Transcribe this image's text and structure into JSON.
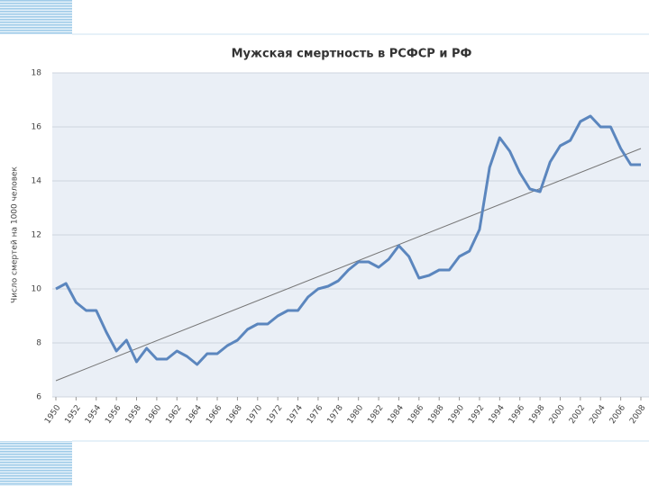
{
  "chart_data": {
    "type": "line",
    "title": "Мужская смертность в РСФСР и РФ",
    "y_label": "Число смертей на 1000 человек",
    "x": [
      1950,
      1951,
      1952,
      1953,
      1954,
      1955,
      1956,
      1957,
      1958,
      1959,
      1960,
      1961,
      1962,
      1963,
      1964,
      1965,
      1966,
      1967,
      1968,
      1969,
      1970,
      1971,
      1972,
      1973,
      1974,
      1975,
      1976,
      1977,
      1978,
      1979,
      1980,
      1981,
      1982,
      1983,
      1984,
      1985,
      1986,
      1987,
      1988,
      1989,
      1990,
      1991,
      1992,
      1993,
      1994,
      1995,
      1996,
      1997,
      1998,
      1999,
      2000,
      2001,
      2002,
      2003,
      2004,
      2005,
      2006,
      2007,
      2008
    ],
    "series": [
      {
        "color": "#5b86be",
        "values": [
          10.0,
          10.2,
          9.5,
          9.2,
          9.2,
          8.4,
          7.7,
          8.1,
          7.3,
          7.8,
          7.4,
          7.4,
          7.7,
          7.5,
          7.2,
          7.6,
          7.6,
          7.9,
          8.1,
          8.5,
          8.7,
          8.7,
          9.0,
          9.2,
          9.2,
          9.7,
          10.0,
          10.1,
          10.3,
          10.7,
          11.0,
          11.0,
          10.8,
          11.1,
          11.6,
          11.2,
          10.4,
          10.5,
          10.7,
          10.7,
          11.2,
          11.4,
          12.2,
          14.5,
          15.6,
          15.1,
          14.3,
          13.7,
          13.6,
          14.7,
          15.3,
          15.5,
          16.2,
          16.4,
          16.0,
          16.0,
          15.2,
          14.6,
          14.6
        ]
      }
    ],
    "trendline": {
      "x": [
        1950,
        2008
      ],
      "values": [
        6.6,
        15.2
      ],
      "color": "#777777"
    },
    "xlim": [
      1950,
      2008
    ],
    "xticks": [
      1950,
      1952,
      1954,
      1956,
      1958,
      1960,
      1962,
      1964,
      1966,
      1968,
      1970,
      1972,
      1974,
      1976,
      1978,
      1980,
      1982,
      1984,
      1986,
      1988,
      1990,
      1992,
      1994,
      1996,
      1998,
      2000,
      2002,
      2004,
      2006,
      2008
    ],
    "ylim": [
      6,
      18
    ],
    "yticks": [
      6,
      8,
      10,
      12,
      14,
      16,
      18
    ],
    "grid": true
  }
}
